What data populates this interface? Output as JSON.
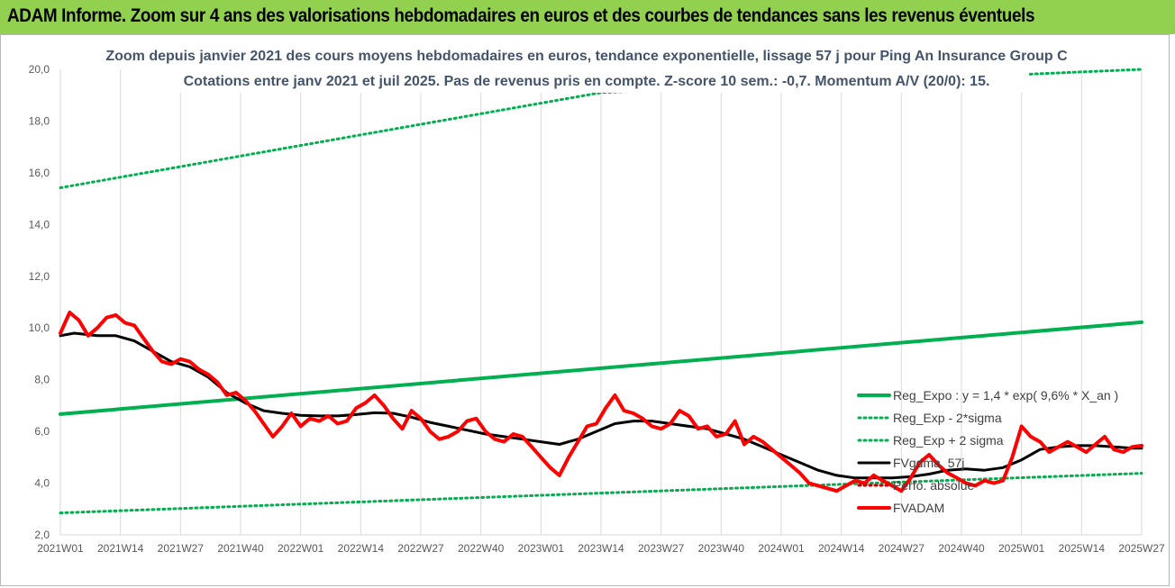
{
  "banner": {
    "title": "ADAM Informe. Zoom sur 4 ans des valorisations hebdomadaires en euros et des courbes de tendances sans les revenus éventuels"
  },
  "colors": {
    "banner_bg": "#92d050",
    "trend": "#00b050",
    "trend_band": "#00b050",
    "smoothed": "#000000",
    "price": "#ff0000",
    "grid": "#d9d9d9"
  },
  "chart_data": {
    "type": "line",
    "title_lines": [
      "Zoom depuis janvier 2021 des cours moyens hebdomadaires en euros, tendance exponentielle, lissage 57 j pour Ping An Insurance Group C",
      "Cotations entre janv 2021 et juil 2025. Pas de revenus pris en compte. Z-score 10 sem.: -0,7. Momentum A/V (20/0): 15."
    ],
    "ylim": [
      2,
      20
    ],
    "y_ticks": [
      "2,0",
      "4,0",
      "6,0",
      "8,0",
      "10,0",
      "12,0",
      "14,0",
      "16,0",
      "18,0",
      "20,0"
    ],
    "x_tick_labels": [
      "2021W01",
      "2021W14",
      "2021W27",
      "2021W40",
      "2022W01",
      "2022W14",
      "2022W27",
      "2022W40",
      "2023W01",
      "2023W14",
      "2023W27",
      "2023W40",
      "2024W01",
      "2024W14",
      "2024W27",
      "2024W40",
      "2025W01",
      "2025W14",
      "2025W27"
    ],
    "x_range_weeks": [
      0,
      234
    ],
    "grid": "vertical",
    "legend_position": "right-bottom",
    "series": [
      {
        "name": "Reg_Expo : y = 1,4 * exp( 9,6% *  X_an )",
        "style": "solid",
        "color": "#00b050",
        "points": [
          [
            0,
            6.67
          ],
          [
            234,
            10.22
          ]
        ]
      },
      {
        "name": "Reg_Exp - 2*sigma",
        "style": "dotted",
        "color": "#00b050",
        "points": [
          [
            0,
            2.85
          ],
          [
            234,
            4.38
          ]
        ]
      },
      {
        "name": "Reg_Exp + 2 sigma",
        "style": "dotted",
        "color": "#00b050",
        "points": [
          [
            0,
            15.42
          ],
          [
            117,
            19.1
          ],
          [
            234,
            20
          ]
        ]
      },
      {
        "name": "FVgdma_57j",
        "style": "solid",
        "color": "#000000",
        "points": [
          [
            0,
            9.7
          ],
          [
            3,
            9.8
          ],
          [
            8,
            9.7
          ],
          [
            12,
            9.7
          ],
          [
            16,
            9.5
          ],
          [
            20,
            9.1
          ],
          [
            24,
            8.7
          ],
          [
            28,
            8.5
          ],
          [
            32,
            8.1
          ],
          [
            36,
            7.5
          ],
          [
            40,
            7.1
          ],
          [
            44,
            6.8
          ],
          [
            48,
            6.7
          ],
          [
            52,
            6.62
          ],
          [
            56,
            6.6
          ],
          [
            60,
            6.6
          ],
          [
            64,
            6.65
          ],
          [
            68,
            6.72
          ],
          [
            72,
            6.7
          ],
          [
            76,
            6.55
          ],
          [
            80,
            6.35
          ],
          [
            84,
            6.2
          ],
          [
            88,
            6.05
          ],
          [
            92,
            5.9
          ],
          [
            96,
            5.8
          ],
          [
            100,
            5.7
          ],
          [
            104,
            5.6
          ],
          [
            108,
            5.5
          ],
          [
            112,
            5.7
          ],
          [
            116,
            6.0
          ],
          [
            120,
            6.3
          ],
          [
            124,
            6.4
          ],
          [
            128,
            6.4
          ],
          [
            132,
            6.3
          ],
          [
            136,
            6.2
          ],
          [
            140,
            6.1
          ],
          [
            144,
            5.9
          ],
          [
            148,
            5.7
          ],
          [
            152,
            5.4
          ],
          [
            156,
            5.1
          ],
          [
            160,
            4.8
          ],
          [
            164,
            4.5
          ],
          [
            168,
            4.3
          ],
          [
            172,
            4.2
          ],
          [
            176,
            4.2
          ],
          [
            180,
            4.2
          ],
          [
            184,
            4.25
          ],
          [
            188,
            4.35
          ],
          [
            192,
            4.5
          ],
          [
            196,
            4.55
          ],
          [
            200,
            4.5
          ],
          [
            204,
            4.6
          ],
          [
            208,
            4.9
          ],
          [
            212,
            5.3
          ],
          [
            216,
            5.4
          ],
          [
            220,
            5.45
          ],
          [
            224,
            5.45
          ],
          [
            228,
            5.4
          ],
          [
            232,
            5.35
          ],
          [
            234,
            5.35
          ]
        ]
      },
      {
        "name": "Perfo. absolue",
        "style": "dotted",
        "color": "#c00000",
        "points": []
      },
      {
        "name": "FVADAM",
        "style": "solid",
        "color": "#ff0000",
        "points": [
          [
            0,
            9.8
          ],
          [
            2,
            10.6
          ],
          [
            4,
            10.3
          ],
          [
            6,
            9.7
          ],
          [
            8,
            10.0
          ],
          [
            10,
            10.4
          ],
          [
            12,
            10.5
          ],
          [
            14,
            10.2
          ],
          [
            16,
            10.1
          ],
          [
            18,
            9.6
          ],
          [
            20,
            9.1
          ],
          [
            22,
            8.7
          ],
          [
            24,
            8.6
          ],
          [
            26,
            8.8
          ],
          [
            28,
            8.7
          ],
          [
            30,
            8.4
          ],
          [
            32,
            8.2
          ],
          [
            34,
            7.9
          ],
          [
            36,
            7.4
          ],
          [
            38,
            7.5
          ],
          [
            40,
            7.2
          ],
          [
            42,
            6.8
          ],
          [
            44,
            6.3
          ],
          [
            46,
            5.8
          ],
          [
            48,
            6.2
          ],
          [
            50,
            6.7
          ],
          [
            52,
            6.2
          ],
          [
            54,
            6.5
          ],
          [
            56,
            6.4
          ],
          [
            58,
            6.6
          ],
          [
            60,
            6.3
          ],
          [
            62,
            6.4
          ],
          [
            64,
            6.9
          ],
          [
            66,
            7.1
          ],
          [
            68,
            7.4
          ],
          [
            70,
            7.0
          ],
          [
            72,
            6.5
          ],
          [
            74,
            6.1
          ],
          [
            76,
            6.8
          ],
          [
            78,
            6.5
          ],
          [
            80,
            6.0
          ],
          [
            82,
            5.7
          ],
          [
            84,
            5.8
          ],
          [
            86,
            6.0
          ],
          [
            88,
            6.4
          ],
          [
            90,
            6.5
          ],
          [
            92,
            6.0
          ],
          [
            94,
            5.7
          ],
          [
            96,
            5.6
          ],
          [
            98,
            5.9
          ],
          [
            100,
            5.8
          ],
          [
            102,
            5.4
          ],
          [
            104,
            5.0
          ],
          [
            106,
            4.6
          ],
          [
            108,
            4.3
          ],
          [
            110,
            5.0
          ],
          [
            112,
            5.6
          ],
          [
            114,
            6.2
          ],
          [
            116,
            6.3
          ],
          [
            118,
            6.9
          ],
          [
            120,
            7.4
          ],
          [
            122,
            6.8
          ],
          [
            124,
            6.7
          ],
          [
            126,
            6.5
          ],
          [
            128,
            6.2
          ],
          [
            130,
            6.1
          ],
          [
            132,
            6.3
          ],
          [
            134,
            6.8
          ],
          [
            136,
            6.6
          ],
          [
            138,
            6.1
          ],
          [
            140,
            6.2
          ],
          [
            142,
            5.8
          ],
          [
            144,
            5.9
          ],
          [
            146,
            6.4
          ],
          [
            148,
            5.5
          ],
          [
            150,
            5.8
          ],
          [
            152,
            5.6
          ],
          [
            154,
            5.3
          ],
          [
            156,
            5.0
          ],
          [
            158,
            4.7
          ],
          [
            160,
            4.4
          ],
          [
            162,
            4.0
          ],
          [
            164,
            3.9
          ],
          [
            166,
            3.8
          ],
          [
            168,
            3.7
          ],
          [
            170,
            3.9
          ],
          [
            172,
            4.1
          ],
          [
            174,
            4.0
          ],
          [
            176,
            4.3
          ],
          [
            178,
            4.1
          ],
          [
            180,
            3.9
          ],
          [
            182,
            3.7
          ],
          [
            184,
            4.2
          ],
          [
            186,
            4.8
          ],
          [
            188,
            5.1
          ],
          [
            190,
            4.7
          ],
          [
            192,
            4.4
          ],
          [
            194,
            4.2
          ],
          [
            196,
            4.0
          ],
          [
            198,
            3.9
          ],
          [
            200,
            4.1
          ],
          [
            202,
            4.0
          ],
          [
            204,
            4.1
          ],
          [
            206,
            5.0
          ],
          [
            208,
            6.2
          ],
          [
            210,
            5.8
          ],
          [
            212,
            5.6
          ],
          [
            214,
            5.2
          ],
          [
            216,
            5.4
          ],
          [
            218,
            5.6
          ],
          [
            220,
            5.4
          ],
          [
            222,
            5.2
          ],
          [
            224,
            5.5
          ],
          [
            226,
            5.8
          ],
          [
            228,
            5.3
          ],
          [
            230,
            5.2
          ],
          [
            232,
            5.4
          ],
          [
            234,
            5.45
          ]
        ]
      }
    ]
  }
}
